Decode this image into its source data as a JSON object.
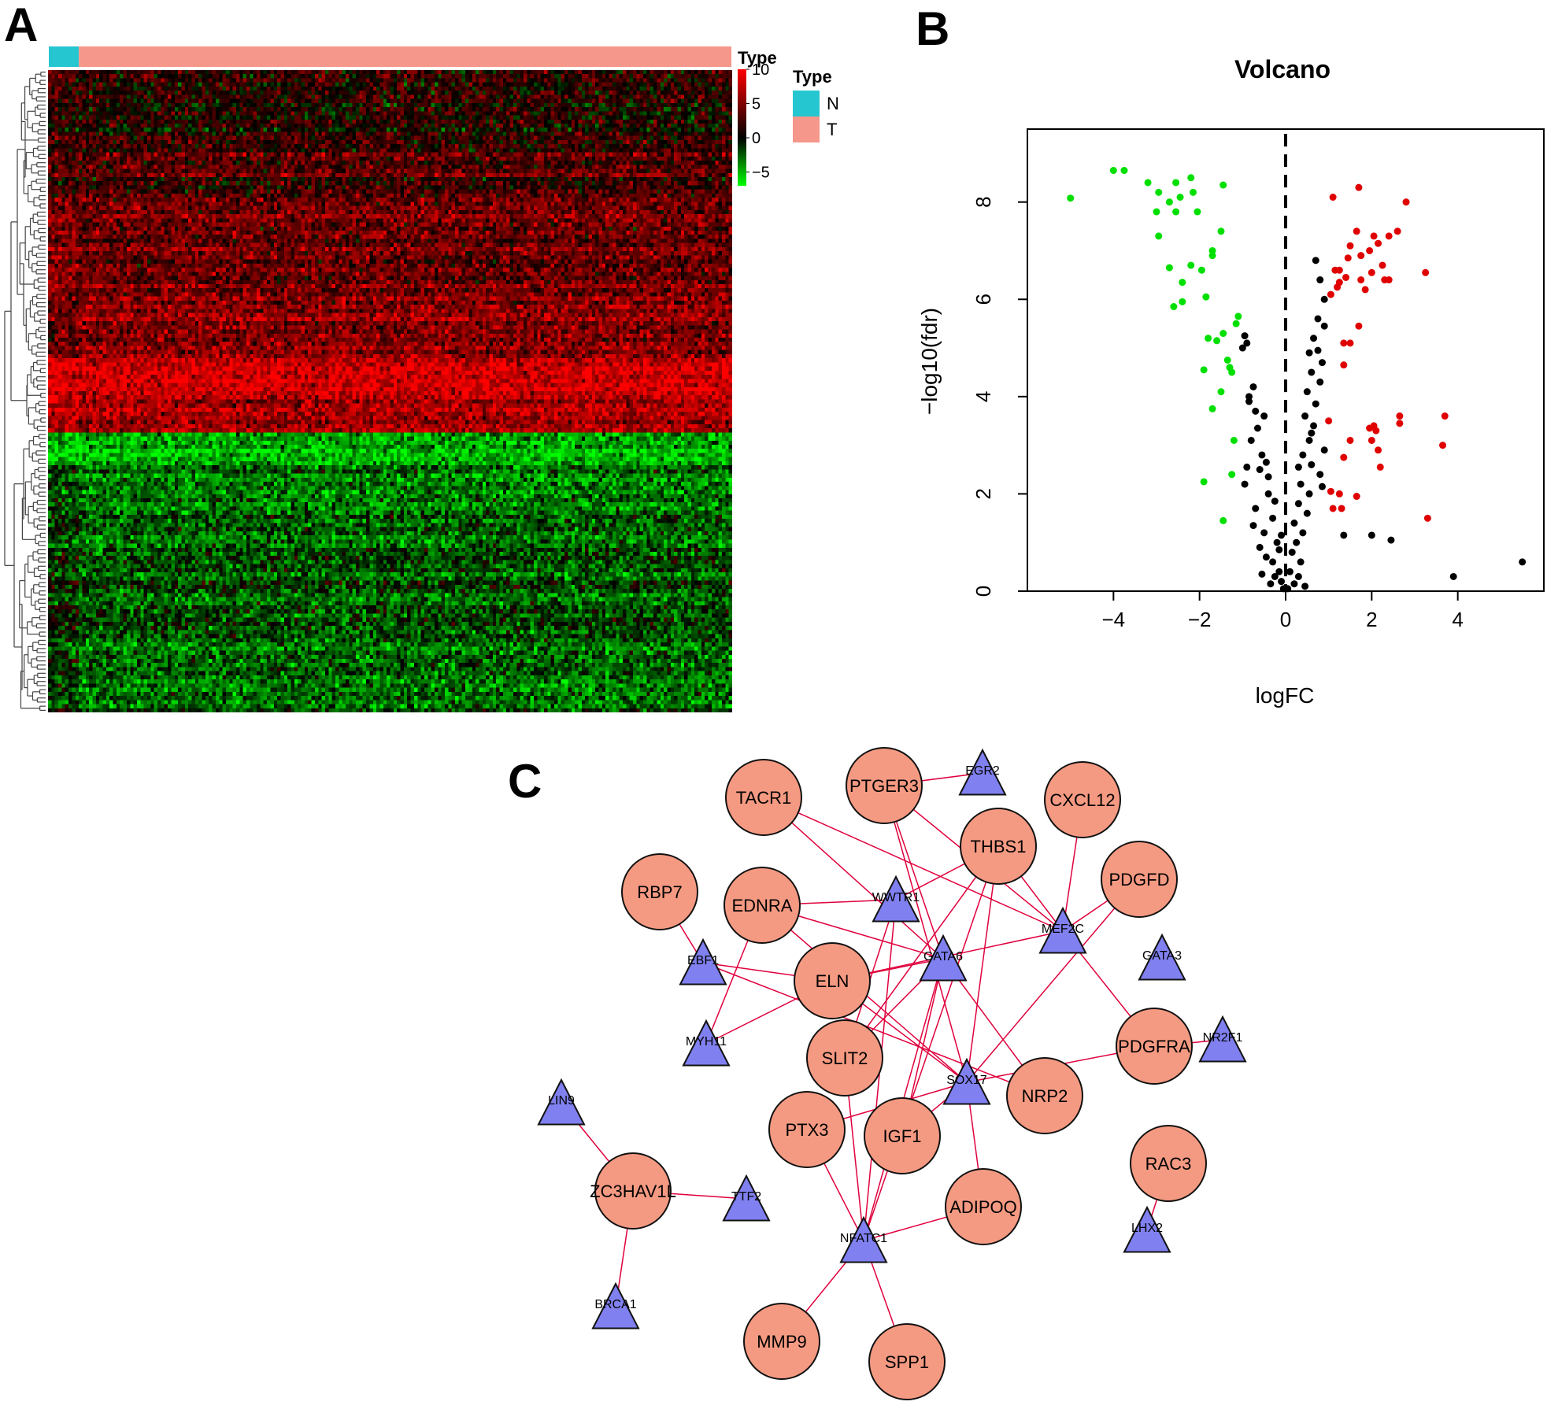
{
  "figure": {
    "panel_letters": [
      "A",
      "B",
      "C"
    ]
  },
  "chart_data": [
    {
      "panel": "A",
      "type": "heatmap",
      "title": "",
      "annotation": {
        "title": "Type",
        "groups": [
          {
            "name": "N",
            "color": "#26C6D0",
            "count": 9
          },
          {
            "name": "T",
            "color": "#F5978A",
            "count": 191
          }
        ]
      },
      "color_scale": {
        "title": "Type",
        "ticks": [
          "10",
          "5",
          "0",
          "−5"
        ],
        "range": [
          -7,
          10
        ],
        "colors": {
          "low": "#00FF00",
          "mid": "#000000",
          "high": "#FF0000"
        }
      },
      "row_blocks": [
        {
          "rows": 18,
          "level": 0.35,
          "normal_level": 0.5
        },
        {
          "rows": 16,
          "level": 0.9,
          "normal_level": 0.8
        },
        {
          "rows": 20,
          "level": 1.1,
          "normal_level": 1.4
        },
        {
          "rows": 16,
          "level": 1.4,
          "normal_level": 1.2
        },
        {
          "rows": 10,
          "level": 2.2,
          "normal_level": 2.4
        },
        {
          "rows": 8,
          "level": 1.8,
          "normal_level": 2.0
        },
        {
          "rows": 8,
          "level": -1.6,
          "normal_level": -1.8
        },
        {
          "rows": 20,
          "level": -1.0,
          "normal_level": -0.6
        },
        {
          "rows": 22,
          "level": -0.7,
          "normal_level": -0.3
        },
        {
          "rows": 18,
          "level": -0.9,
          "normal_level": -0.5
        }
      ],
      "dendrogram": "row clustering dendrogram (left)"
    },
    {
      "panel": "B",
      "type": "scatter",
      "title": "Volcano",
      "xlabel": "logFC",
      "ylabel": "−log10(fdr)",
      "xlim": [
        -6,
        6
      ],
      "ylim": [
        0,
        9.5
      ],
      "xticks": [
        "−4",
        "−2",
        "0",
        "2",
        "4"
      ],
      "xtick_values": [
        -4,
        -2,
        0,
        2,
        4
      ],
      "yticks": [
        "0",
        "2",
        "4",
        "6",
        "8"
      ],
      "ytick_values": [
        0,
        2,
        4,
        6,
        8
      ],
      "vline": 0,
      "series": [
        {
          "color": "#00E000",
          "points": [
            [
              -5.0,
              8.08
            ],
            [
              -4.0,
              8.65
            ],
            [
              -3.75,
              8.65
            ],
            [
              -3.2,
              8.4
            ],
            [
              -2.95,
              8.2
            ],
            [
              -2.55,
              8.4
            ],
            [
              -2.2,
              8.5
            ],
            [
              -1.45,
              8.35
            ],
            [
              -2.7,
              8.0
            ],
            [
              -2.45,
              8.1
            ],
            [
              -2.15,
              8.2
            ],
            [
              -3.0,
              7.8
            ],
            [
              -2.55,
              7.8
            ],
            [
              -2.05,
              7.8
            ],
            [
              -1.5,
              7.4
            ],
            [
              -2.95,
              7.3
            ],
            [
              -1.7,
              7.0
            ],
            [
              -1.7,
              6.9
            ],
            [
              -2.7,
              6.65
            ],
            [
              -2.2,
              6.7
            ],
            [
              -1.95,
              6.6
            ],
            [
              -2.4,
              6.35
            ],
            [
              -1.85,
              6.05
            ],
            [
              -2.6,
              5.85
            ],
            [
              -2.4,
              5.95
            ],
            [
              -1.1,
              5.65
            ],
            [
              -1.15,
              5.5
            ],
            [
              -1.45,
              5.3
            ],
            [
              -1.8,
              5.2
            ],
            [
              -1.6,
              5.15
            ],
            [
              -1.35,
              4.75
            ],
            [
              -1.9,
              4.55
            ],
            [
              -1.3,
              4.6
            ],
            [
              -1.25,
              4.5
            ],
            [
              -1.5,
              4.1
            ],
            [
              -1.7,
              3.75
            ],
            [
              -1.2,
              3.1
            ],
            [
              -1.9,
              2.25
            ],
            [
              -1.25,
              2.4
            ],
            [
              -1.45,
              1.45
            ]
          ]
        },
        {
          "color": "#E00000",
          "points": [
            [
              1.1,
              8.1
            ],
            [
              1.7,
              8.3
            ],
            [
              2.8,
              8.0
            ],
            [
              1.65,
              7.4
            ],
            [
              2.05,
              7.3
            ],
            [
              2.4,
              7.3
            ],
            [
              2.6,
              7.4
            ],
            [
              1.5,
              7.1
            ],
            [
              2.15,
              7.15
            ],
            [
              1.95,
              7.0
            ],
            [
              1.75,
              6.9
            ],
            [
              1.45,
              6.85
            ],
            [
              2.25,
              6.7
            ],
            [
              1.15,
              6.6
            ],
            [
              1.25,
              6.6
            ],
            [
              2.0,
              6.55
            ],
            [
              3.25,
              6.55
            ],
            [
              1.4,
              6.45
            ],
            [
              1.75,
              6.4
            ],
            [
              2.3,
              6.4
            ],
            [
              2.4,
              6.4
            ],
            [
              1.25,
              6.35
            ],
            [
              1.2,
              6.25
            ],
            [
              1.85,
              6.2
            ],
            [
              1.05,
              6.1
            ],
            [
              1.7,
              5.45
            ],
            [
              1.35,
              5.1
            ],
            [
              1.5,
              5.1
            ],
            [
              1.35,
              4.65
            ],
            [
              1.0,
              3.5
            ],
            [
              1.95,
              3.35
            ],
            [
              2.05,
              3.4
            ],
            [
              2.65,
              3.45
            ],
            [
              3.7,
              3.6
            ],
            [
              2.1,
              3.3
            ],
            [
              2.65,
              3.6
            ],
            [
              1.5,
              3.1
            ],
            [
              2.0,
              3.1
            ],
            [
              3.65,
              3.0
            ],
            [
              1.35,
              2.75
            ],
            [
              2.15,
              2.9
            ],
            [
              2.2,
              2.55
            ],
            [
              1.05,
              2.05
            ],
            [
              1.25,
              2.0
            ],
            [
              1.65,
              1.95
            ],
            [
              1.1,
              1.7
            ],
            [
              1.3,
              1.7
            ],
            [
              3.3,
              1.5
            ]
          ]
        },
        {
          "color": "#000000",
          "points": [
            [
              -0.95,
              5.25
            ],
            [
              -0.9,
              5.1
            ],
            [
              -1.0,
              5.0
            ],
            [
              -0.75,
              4.2
            ],
            [
              -0.85,
              4.0
            ],
            [
              -0.5,
              3.6
            ],
            [
              -0.8,
              3.1
            ],
            [
              -0.55,
              2.8
            ],
            [
              -0.6,
              2.5
            ],
            [
              -0.95,
              2.2
            ],
            [
              -0.4,
              2.0
            ],
            [
              -0.7,
              1.7
            ],
            [
              -0.3,
              1.5
            ],
            [
              -0.5,
              1.2
            ],
            [
              -0.2,
              1.0
            ],
            [
              -0.6,
              0.9
            ],
            [
              -0.45,
              0.7
            ],
            [
              -0.3,
              0.6
            ],
            [
              -0.15,
              0.4
            ],
            [
              -0.55,
              0.35
            ],
            [
              -0.1,
              0.2
            ],
            [
              -0.35,
              0.15
            ],
            [
              -0.05,
              0.05
            ],
            [
              -0.65,
              3.35
            ],
            [
              -0.4,
              2.35
            ],
            [
              -0.25,
              1.85
            ],
            [
              -0.75,
              1.35
            ],
            [
              -0.1,
              1.15
            ],
            [
              -0.85,
              3.9
            ],
            [
              -0.7,
              3.7
            ],
            [
              -0.15,
              0.85
            ],
            [
              -0.25,
              0.3
            ],
            [
              -0.9,
              2.55
            ],
            [
              -0.45,
              2.65
            ],
            [
              0.7,
              6.8
            ],
            [
              0.8,
              6.4
            ],
            [
              0.9,
              6.0
            ],
            [
              0.75,
              5.6
            ],
            [
              0.9,
              5.45
            ],
            [
              0.65,
              5.2
            ],
            [
              0.55,
              4.9
            ],
            [
              0.85,
              4.7
            ],
            [
              0.6,
              4.5
            ],
            [
              0.8,
              4.3
            ],
            [
              0.5,
              4.1
            ],
            [
              0.7,
              3.85
            ],
            [
              0.45,
              3.6
            ],
            [
              0.65,
              3.4
            ],
            [
              0.55,
              3.1
            ],
            [
              0.9,
              2.9
            ],
            [
              0.4,
              2.8
            ],
            [
              0.6,
              2.6
            ],
            [
              0.8,
              2.4
            ],
            [
              0.35,
              2.2
            ],
            [
              0.55,
              2.0
            ],
            [
              0.3,
              1.8
            ],
            [
              0.5,
              1.6
            ],
            [
              0.2,
              1.4
            ],
            [
              0.4,
              1.2
            ],
            [
              0.25,
              1.0
            ],
            [
              0.15,
              0.8
            ],
            [
              0.35,
              0.6
            ],
            [
              0.1,
              0.4
            ],
            [
              0.3,
              0.3
            ],
            [
              0.2,
              0.15
            ],
            [
              0.05,
              0.05
            ],
            [
              0.45,
              0.1
            ],
            [
              0.6,
              3.25
            ],
            [
              0.75,
              4.95
            ],
            [
              0.85,
              2.15
            ],
            [
              0.3,
              2.55
            ],
            [
              1.35,
              1.15
            ],
            [
              2.0,
              1.15
            ],
            [
              2.45,
              1.05
            ],
            [
              3.9,
              0.3
            ],
            [
              5.5,
              0.6
            ]
          ]
        }
      ]
    }
  ],
  "network": {
    "panel": "C",
    "gene_color": "#F59A82",
    "tf_color": "#8080F0",
    "edge_color": "#E0003C",
    "genes": [
      "TACR1",
      "PTGER3",
      "CXCL12",
      "THBS1",
      "PDGFD",
      "RBP7",
      "EDNRA",
      "ELN",
      "SLIT2",
      "PDGFRA",
      "NRP2",
      "PTX3",
      "IGF1",
      "RAC3",
      "ZC3HAV1L",
      "ADIPOQ",
      "MMP9",
      "SPP1"
    ],
    "tfs": [
      "EGR2",
      "WWTR1",
      "MEF2C",
      "EBF1",
      "GATA6",
      "GATA3",
      "MYH11",
      "NR2F1",
      "SOX17",
      "LIN9",
      "TTF2",
      "NFATC1",
      "LHX2",
      "BRCA1"
    ],
    "edges": [
      [
        "PTGER3",
        "EGR2"
      ],
      [
        "TACR1",
        "MEF2C"
      ],
      [
        "TACR1",
        "GATA6"
      ],
      [
        "PTGER3",
        "GATA6"
      ],
      [
        "PTGER3",
        "SOX17"
      ],
      [
        "PTGER3",
        "MEF2C"
      ],
      [
        "CXCL12",
        "MEF2C"
      ],
      [
        "THBS1",
        "MEF2C"
      ],
      [
        "THBS1",
        "WWTR1"
      ],
      [
        "THBS1",
        "SLIT2"
      ],
      [
        "THBS1",
        "SOX17"
      ],
      [
        "THBS1",
        "NFATC1"
      ],
      [
        "PDGFD",
        "MEF2C"
      ],
      [
        "PDGFD",
        "SOX17"
      ],
      [
        "RBP7",
        "EBF1"
      ],
      [
        "EDNRA",
        "WWTR1"
      ],
      [
        "EDNRA",
        "GATA6"
      ],
      [
        "EDNRA",
        "MYH11"
      ],
      [
        "EDNRA",
        "SOX17"
      ],
      [
        "ELN",
        "EBF1"
      ],
      [
        "ELN",
        "GATA6"
      ],
      [
        "ELN",
        "MYH11"
      ],
      [
        "ELN",
        "SOX17"
      ],
      [
        "ELN",
        "MEF2C"
      ],
      [
        "SLIT2",
        "WWTR1"
      ],
      [
        "SLIT2",
        "GATA6"
      ],
      [
        "SLIT2",
        "NFATC1"
      ],
      [
        "PDGFRA",
        "MEF2C"
      ],
      [
        "PDGFRA",
        "NR2F1"
      ],
      [
        "PDGFRA",
        "SOX17"
      ],
      [
        "NRP2",
        "GATA6"
      ],
      [
        "NRP2",
        "EBF1"
      ],
      [
        "PTX3",
        "SOX17"
      ],
      [
        "PTX3",
        "NFATC1"
      ],
      [
        "IGF1",
        "GATA6"
      ],
      [
        "IGF1",
        "SOX17"
      ],
      [
        "SOX17",
        "ADIPOQ"
      ],
      [
        "ADIPOQ",
        "NFATC1"
      ],
      [
        "NFATC1",
        "MMP9"
      ],
      [
        "NFATC1",
        "SPP1"
      ],
      [
        "LIN9",
        "ZC3HAV1L"
      ],
      [
        "ZC3HAV1L",
        "TTF2"
      ],
      [
        "ZC3HAV1L",
        "BRCA1"
      ],
      [
        "RAC3",
        "LHX2"
      ],
      [
        "WWTR1",
        "NFATC1"
      ],
      [
        "GATA6",
        "NFATC1"
      ]
    ]
  }
}
